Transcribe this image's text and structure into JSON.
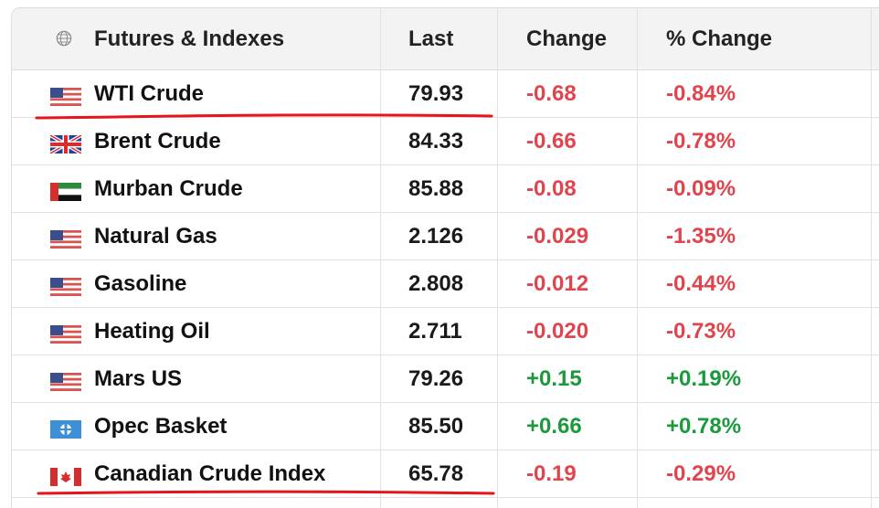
{
  "table": {
    "headers": {
      "name": "Futures & Indexes",
      "last": "Last",
      "change": "Change",
      "pct_change": "% Change"
    },
    "rows": [
      {
        "name": "WTI Crude",
        "flag": "us-flag-icon",
        "last": "79.93",
        "change": "-0.68",
        "pct": "-0.84%",
        "dir": "neg"
      },
      {
        "name": "Brent Crude",
        "flag": "uk-flag-icon",
        "last": "84.33",
        "change": "-0.66",
        "pct": "-0.78%",
        "dir": "neg"
      },
      {
        "name": "Murban Crude",
        "flag": "uae-flag-icon",
        "last": "85.88",
        "change": "-0.08",
        "pct": "-0.09%",
        "dir": "neg"
      },
      {
        "name": "Natural Gas",
        "flag": "us-flag-icon",
        "last": "2.126",
        "change": "-0.029",
        "pct": "-1.35%",
        "dir": "neg"
      },
      {
        "name": "Gasoline",
        "flag": "us-flag-icon",
        "last": "2.808",
        "change": "-0.012",
        "pct": "-0.44%",
        "dir": "neg"
      },
      {
        "name": "Heating Oil",
        "flag": "us-flag-icon",
        "last": "2.711",
        "change": "-0.020",
        "pct": "-0.73%",
        "dir": "neg"
      },
      {
        "name": "Mars US",
        "flag": "us-flag-icon",
        "last": "79.26",
        "change": "+0.15",
        "pct": "+0.19%",
        "dir": "pos"
      },
      {
        "name": "Opec Basket",
        "flag": "opec-flag-icon",
        "last": "85.50",
        "change": "+0.66",
        "pct": "+0.78%",
        "dir": "pos"
      },
      {
        "name": "Canadian Crude Index",
        "flag": "canada-flag-icon",
        "last": "65.78",
        "change": "-0.19",
        "pct": "-0.29%",
        "dir": "neg"
      }
    ]
  },
  "colors": {
    "negative": "#e0454e",
    "positive": "#1a9a3a",
    "annotation": "#e8141b"
  }
}
